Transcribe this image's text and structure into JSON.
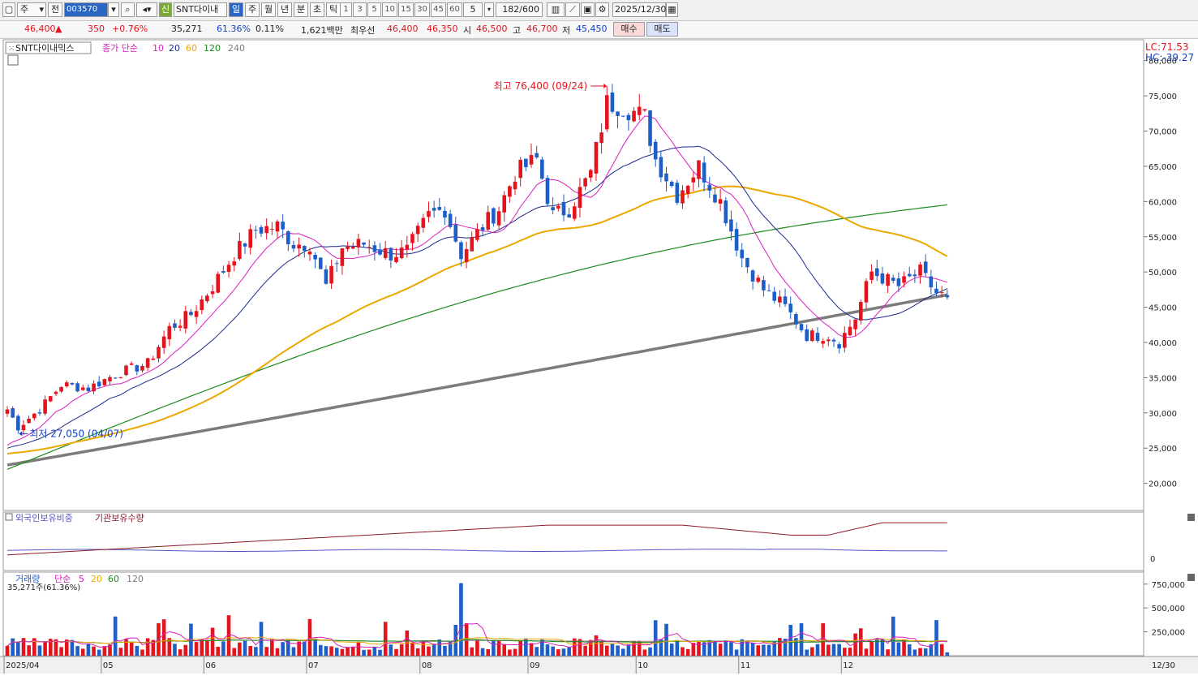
{
  "toolbar": {
    "period_select": "주",
    "all_button": "전",
    "code_value": "003570",
    "stock_name": "SNT다이내믹",
    "new_label": "신",
    "tabs": [
      "일",
      "주",
      "월",
      "년",
      "분",
      "초",
      "틱"
    ],
    "active_tab": "일",
    "intervals": [
      "1",
      "3",
      "5",
      "10",
      "15",
      "30",
      "45",
      "60"
    ],
    "interval_input": "5",
    "count": "182/600",
    "date": "2025/12/30"
  },
  "quote": {
    "price": "46,400",
    "change_arrow": "▲",
    "change": "350",
    "change_pct": "+0.76%",
    "volume": "35,271",
    "volume_ratio": "61.36%",
    "turnover": "0.11%",
    "amount": "1,621백만",
    "priority_label": "최우선",
    "ask": "46,400",
    "bid": "46,350",
    "open_label": "시",
    "open": "46,500",
    "high_label": "고",
    "high": "46,700",
    "low_label": "저",
    "low": "45,450",
    "buy_button": "매수",
    "sell_button": "매도"
  },
  "colors": {
    "up": "#e3141e",
    "down": "#1d5ec8",
    "ma10": "#d81ec0",
    "ma20": "#1a2a8c",
    "ma60": "#eaa800",
    "ma120": "#1a8a1a",
    "ma240": "#7c7c7c",
    "foreign": "#5555c8",
    "institution": "#8c1a2a"
  },
  "price_panel": {
    "legend_name": "SNT다이내믹스",
    "legend_type": "종가 단순",
    "ma_periods": [
      "10",
      "20",
      "60",
      "120",
      "240"
    ],
    "lc": "LC:71.53",
    "hc": "HC:-39.27"
  },
  "holding_panel": {
    "legend": [
      "외국인보유비중",
      "기관보유수량"
    ],
    "tick": "0"
  },
  "volume_panel": {
    "legend_name": "거래량",
    "legend_type": "단순",
    "ma_periods": [
      "5",
      "20",
      "60",
      "120"
    ],
    "current": "35,271주(61.36%)"
  },
  "chart_data": {
    "type": "candlestick",
    "y_ticks": [
      20000,
      25000,
      30000,
      35000,
      40000,
      45000,
      50000,
      55000,
      60000,
      65000,
      70000,
      75000,
      80000
    ],
    "y_tick_labels": [
      "20,000",
      "25,000",
      "30,000",
      "35,000",
      "40,000",
      "45,000",
      "50,000",
      "55,000",
      "60,000",
      "65,000",
      "70,000",
      "75,000",
      "80,000"
    ],
    "ylim": [
      16500,
      82500
    ],
    "x_labels": [
      "2025/04",
      "05",
      "06",
      "07",
      "08",
      "09",
      "10",
      "11",
      "12"
    ],
    "x_label_index": [
      0,
      18,
      37,
      56,
      77,
      97,
      117,
      136,
      155
    ],
    "end_label": "12/30",
    "max_annotation": {
      "text": "최고 76,400 (09/24)",
      "index": 111,
      "value": 76400
    },
    "min_annotation": {
      "text": "최저 27,050 (04/07)",
      "index": 2,
      "value": 27050
    },
    "anchors": [
      [
        0,
        30500
      ],
      [
        2,
        28000
      ],
      [
        6,
        30500
      ],
      [
        10,
        34000
      ],
      [
        15,
        33500
      ],
      [
        20,
        35500
      ],
      [
        26,
        37000
      ],
      [
        30,
        42000
      ],
      [
        34,
        44000
      ],
      [
        38,
        48000
      ],
      [
        42,
        52500
      ],
      [
        46,
        56000
      ],
      [
        50,
        56500
      ],
      [
        53,
        54000
      ],
      [
        56,
        54000
      ],
      [
        59,
        48000
      ],
      [
        62,
        53500
      ],
      [
        66,
        54000
      ],
      [
        71,
        52500
      ],
      [
        74,
        53000
      ],
      [
        78,
        58000
      ],
      [
        81,
        59000
      ],
      [
        84,
        52500
      ],
      [
        88,
        56500
      ],
      [
        91,
        59000
      ],
      [
        94,
        64000
      ],
      [
        98,
        66000
      ],
      [
        101,
        58000
      ],
      [
        104,
        59000
      ],
      [
        108,
        64000
      ],
      [
        111,
        74000
      ],
      [
        114,
        73500
      ],
      [
        118,
        72000
      ],
      [
        120,
        66000
      ],
      [
        124,
        61000
      ],
      [
        128,
        65000
      ],
      [
        132,
        60000
      ],
      [
        136,
        52000
      ],
      [
        140,
        47500
      ],
      [
        144,
        45000
      ],
      [
        148,
        41000
      ],
      [
        152,
        41000
      ],
      [
        154,
        40000
      ],
      [
        157,
        43500
      ],
      [
        160,
        50000
      ],
      [
        165,
        48000
      ],
      [
        169,
        50000
      ],
      [
        172,
        47000
      ],
      [
        174,
        46400
      ]
    ],
    "volume_ticks": [
      250000,
      500000,
      750000
    ],
    "volume_tick_labels": [
      "250,000",
      "500,000",
      "750,000"
    ],
    "volume_ylim": [
      0,
      850000
    ]
  }
}
